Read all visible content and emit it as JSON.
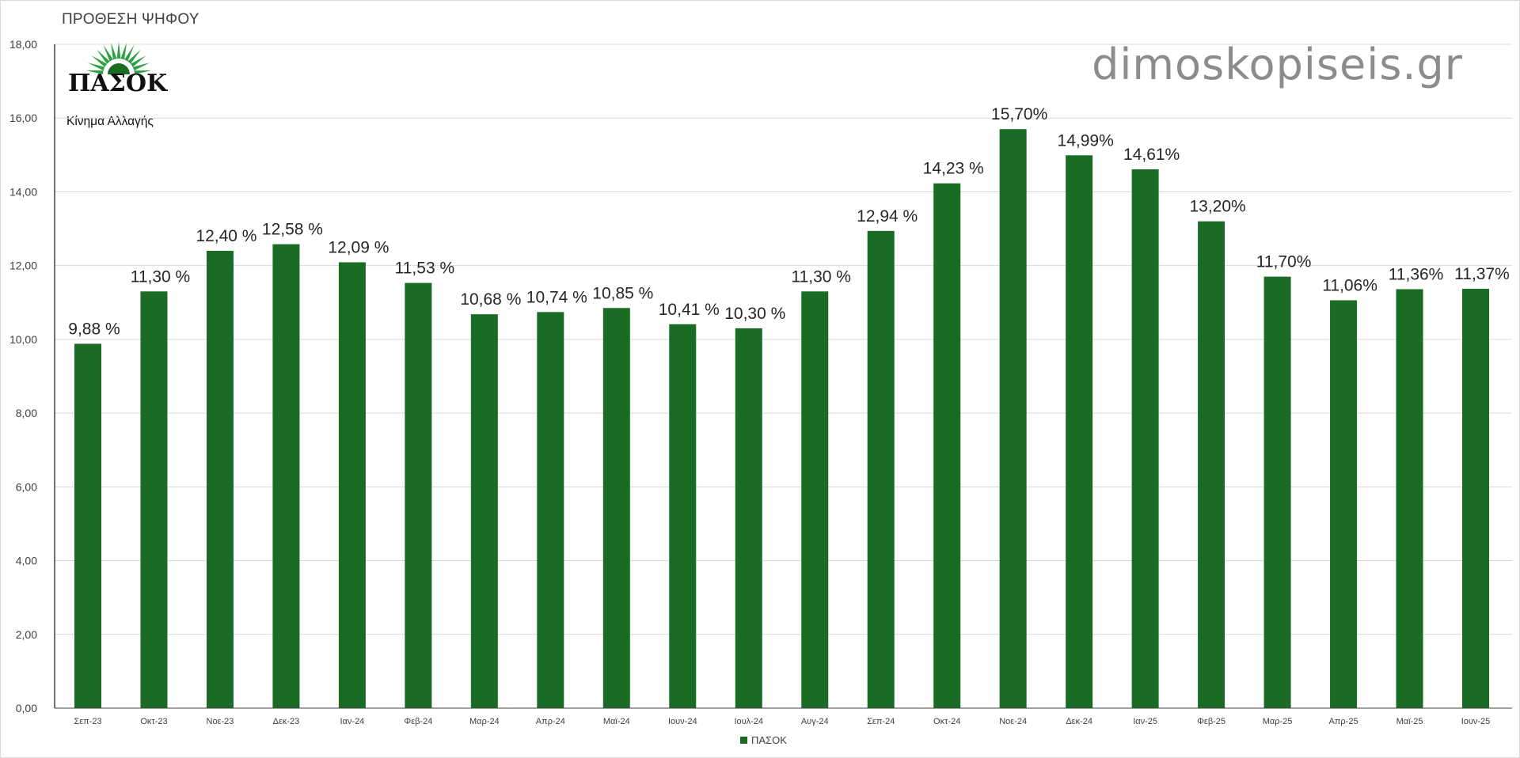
{
  "title": "ΠΡΟΘΕΣΗ ΨΗΦΟΥ",
  "watermark": "dimoskopiseis.gr",
  "logo": {
    "name": "ΠΑΣΟΚ",
    "subtitle": "Κίνημα Αλλαγής",
    "color": "#1a6b24",
    "sun_color": "#2ea043"
  },
  "colors": {
    "bar": "#1a6b24",
    "grid": "#d9d9d9",
    "axis": "#404040"
  },
  "chart_data": {
    "type": "bar",
    "title": "ΠΡΟΘΕΣΗ ΨΗΦΟΥ",
    "xlabel": "",
    "ylabel": "",
    "ylim": [
      0,
      18
    ],
    "yticks": [
      "0,00",
      "2,00",
      "4,00",
      "6,00",
      "8,00",
      "10,00",
      "12,00",
      "14,00",
      "16,00",
      "18,00"
    ],
    "grid": true,
    "legend": "bottom-center",
    "categories": [
      "Σεπ-23",
      "Οκτ-23",
      "Νοε-23",
      "Δεκ-23",
      "Ιαν-24",
      "Φεβ-24",
      "Μαρ-24",
      "Απρ-24",
      "Μαϊ-24",
      "Ιουν-24",
      "Ιουλ-24",
      "Αυγ-24",
      "Σεπ-24",
      "Οκτ-24",
      "Νοε-24",
      "Δεκ-24",
      "Ιαν-25",
      "Φεβ-25",
      "Μαρ-25",
      "Απρ-25",
      "Μαϊ-25",
      "Ιουν-25"
    ],
    "series": [
      {
        "name": "ΠΑΣΟΚ",
        "values": [
          9.88,
          11.3,
          12.4,
          12.58,
          12.09,
          11.53,
          10.68,
          10.74,
          10.85,
          10.41,
          10.3,
          11.3,
          12.94,
          14.23,
          15.7,
          14.99,
          14.61,
          13.2,
          11.7,
          11.06,
          11.36,
          11.37
        ],
        "labels": [
          "9,88 %",
          "11,30 %",
          "12,40 %",
          "12,58 %",
          "12,09 %",
          "11,53 %",
          "10,68 %",
          "10,74 %",
          "10,85 %",
          "10,41 %",
          "10,30 %",
          "11,30 %",
          "12,94 %",
          "14,23 %",
          "15,70%",
          "14,99%",
          "14,61%",
          "13,20%",
          "11,70%",
          "11,06%",
          "11,36%",
          "11,37%"
        ]
      }
    ]
  }
}
